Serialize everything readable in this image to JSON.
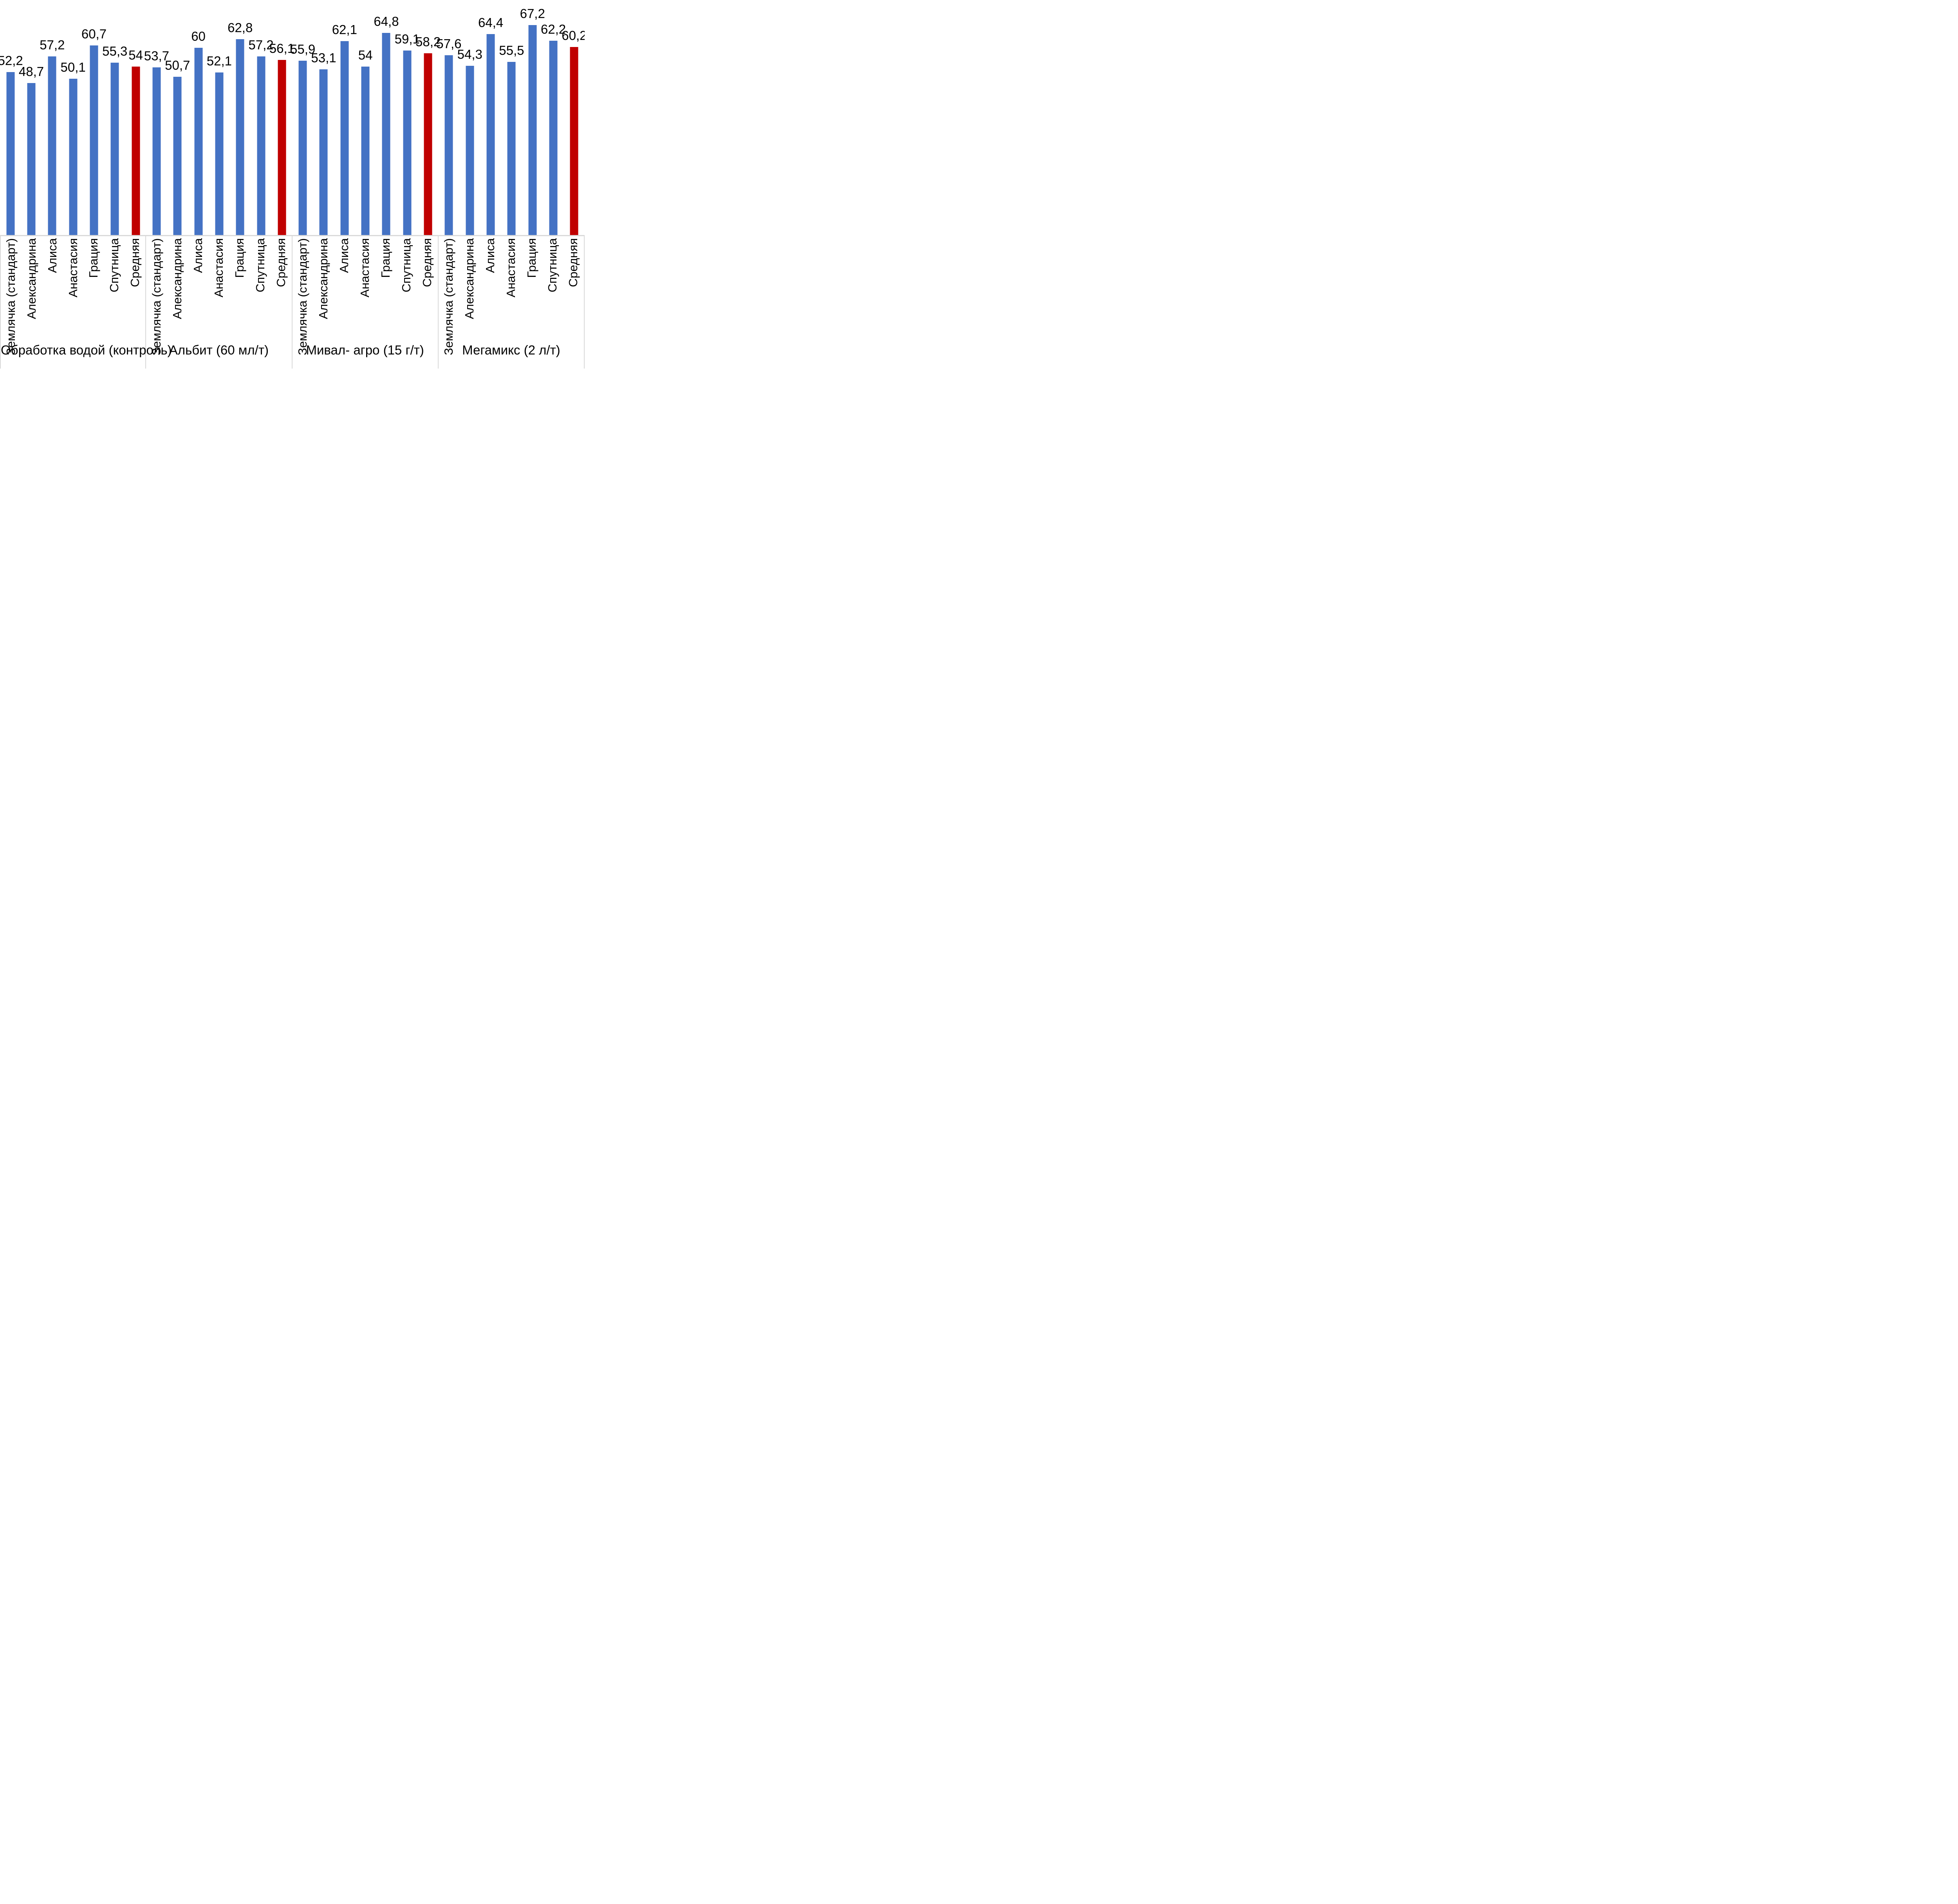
{
  "chart_data": {
    "type": "bar",
    "title": "",
    "xlabel": "",
    "ylabel": "",
    "ylim": [
      0,
      75
    ],
    "gridlines": false,
    "legend": "none",
    "decimal_separator": ",",
    "categories": [
      "Землячка (стандарт)",
      "Александрина",
      "Алиса",
      "Анастасия",
      "Грация",
      "Спутница",
      "Средняя"
    ],
    "average_category": "Средняя",
    "groups": [
      {
        "label": "Обработка водой (контроль)",
        "values": [
          52.2,
          48.7,
          57.2,
          50.1,
          60.7,
          55.3,
          54
        ],
        "value_labels": [
          "52,2",
          "48,7",
          "57,2",
          "50,1",
          "60,7",
          "55,3",
          "54"
        ]
      },
      {
        "label": "Альбит (60 мл/т)",
        "values": [
          53.7,
          50.7,
          60,
          52.1,
          62.8,
          57.2,
          56.1
        ],
        "value_labels": [
          "53,7",
          "50,7",
          "60",
          "52,1",
          "62,8",
          "57,2",
          "56,1"
        ]
      },
      {
        "label": "Мивал- агро (15 г/т)",
        "values": [
          55.9,
          53.1,
          62.1,
          54,
          64.8,
          59.1,
          58.2
        ],
        "value_labels": [
          "55,9",
          "53,1",
          "62,1",
          "54",
          "64,8",
          "59,1",
          "58,2"
        ]
      },
      {
        "label": "Мегамикс (2 л/т)",
        "values": [
          57.6,
          54.3,
          64.4,
          55.5,
          67.2,
          62.2,
          60.2
        ],
        "value_labels": [
          "57,6",
          "54,3",
          "64,4",
          "55,5",
          "67,2",
          "62,2",
          "60,2"
        ]
      }
    ],
    "colors": {
      "bar": "#4472C4",
      "average_bar": "#C00000",
      "axis_line": "#D9D9D9",
      "label_text": "#000000",
      "background": "#FFFFFF"
    }
  }
}
